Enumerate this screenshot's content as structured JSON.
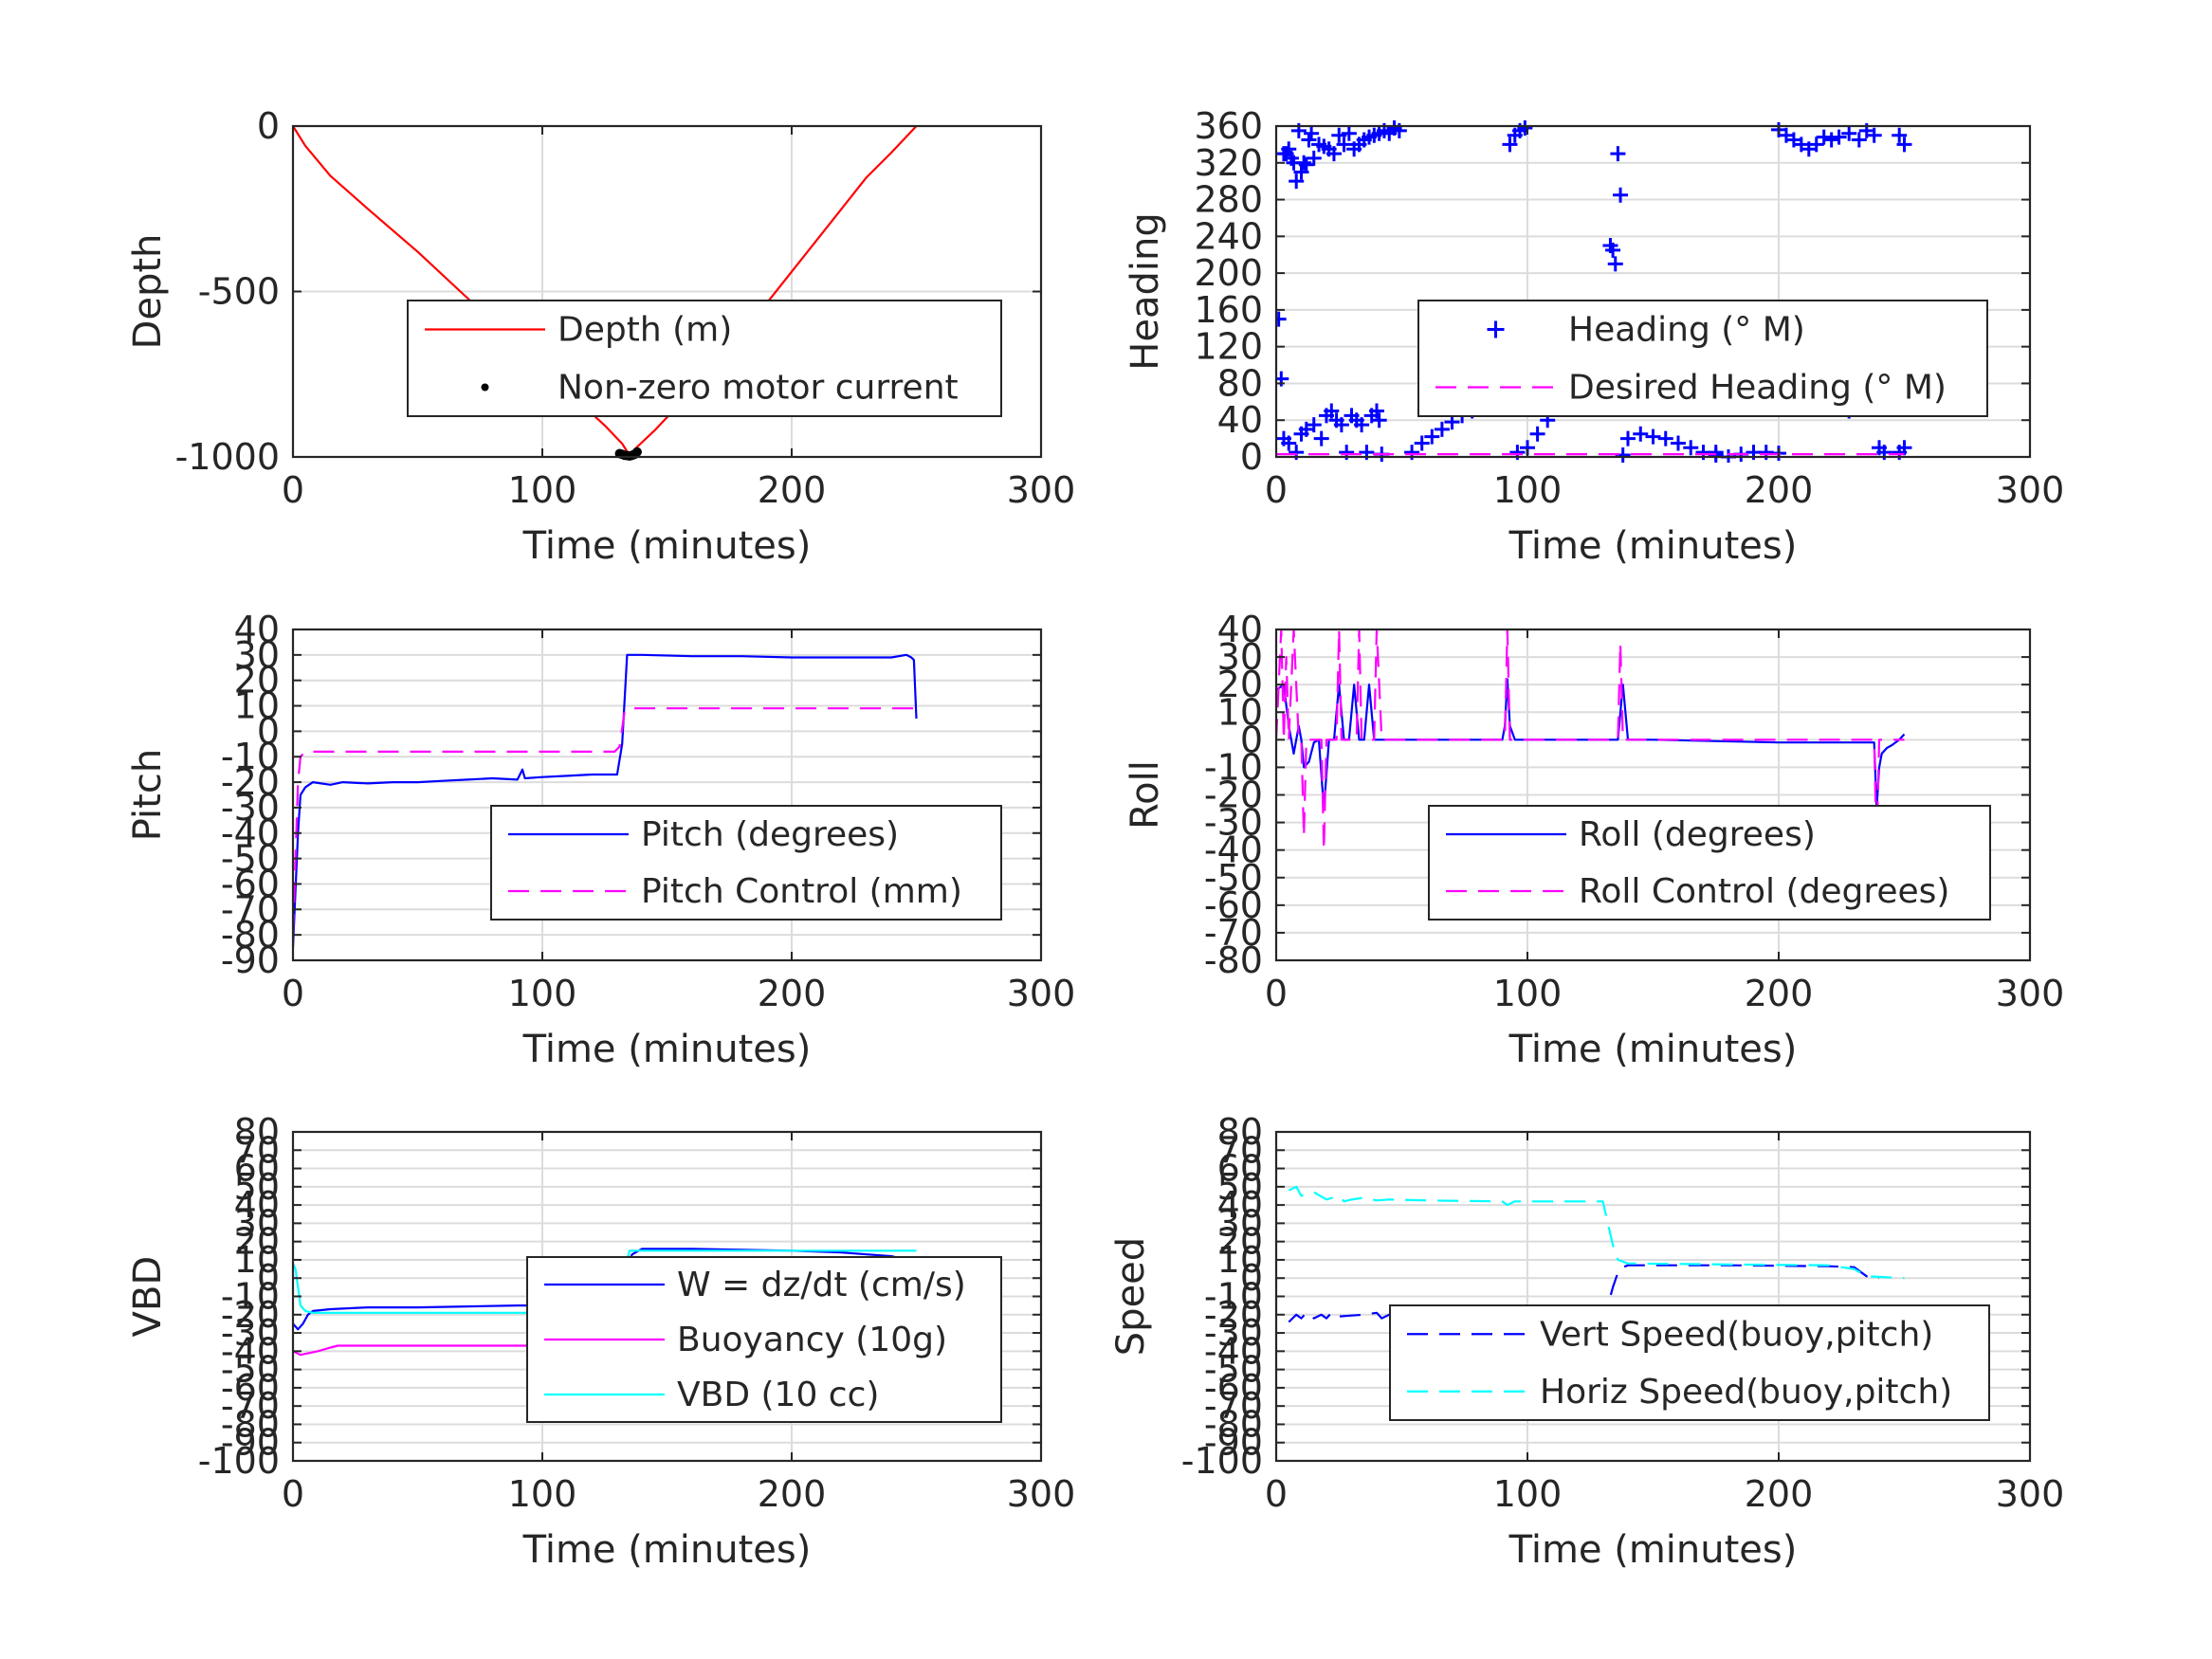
{
  "chart_data": [
    {
      "id": "depth",
      "type": "line",
      "xlabel": "Time (minutes)",
      "ylabel": "Depth",
      "xlim": [
        0,
        300
      ],
      "ylim": [
        -1000,
        0
      ],
      "xticks": [
        0,
        100,
        200,
        300
      ],
      "yticks": [
        -1000,
        -500,
        0
      ],
      "grid": true,
      "legend": "center-right",
      "series": [
        {
          "name": "Depth (m)",
          "color": "#ff0000",
          "style": "solid",
          "marker": "none",
          "x": [
            0,
            5,
            15,
            30,
            50,
            70,
            90,
            110,
            125,
            132,
            135,
            138,
            145,
            160,
            180,
            200,
            220,
            230,
            240,
            250
          ],
          "y": [
            0,
            -60,
            -150,
            -250,
            -380,
            -520,
            -660,
            -800,
            -905,
            -960,
            -995,
            -970,
            -920,
            -800,
            -630,
            -440,
            -250,
            -155,
            -80,
            0
          ]
        },
        {
          "name": "Non-zero motor current",
          "color": "#000000",
          "style": "none",
          "marker": "dot",
          "x": [
            131,
            132,
            133,
            134,
            135,
            136,
            137,
            138
          ],
          "y": [
            -990,
            -992,
            -995,
            -996,
            -997,
            -995,
            -992,
            -985
          ]
        }
      ]
    },
    {
      "id": "heading",
      "type": "scatter",
      "xlabel": "Time (minutes)",
      "ylabel": "Heading",
      "xlim": [
        0,
        300
      ],
      "ylim": [
        0,
        360
      ],
      "xticks": [
        0,
        100,
        200,
        300
      ],
      "yticks": [
        0,
        40,
        80,
        120,
        160,
        200,
        240,
        280,
        320,
        360
      ],
      "grid": true,
      "legend": "center-right",
      "series": [
        {
          "name": "Heading (° M)",
          "color": "#0000ff",
          "style": "none",
          "marker": "plus",
          "x": [
            1,
            2,
            3,
            4,
            5,
            6,
            7,
            8,
            9,
            10,
            11,
            12,
            13,
            14,
            15,
            17,
            19,
            21,
            23,
            25,
            27,
            29,
            31,
            33,
            35,
            37,
            39,
            41,
            43,
            45,
            47,
            49,
            3,
            5,
            8,
            10,
            12,
            15,
            18,
            20,
            22,
            24,
            26,
            28,
            30,
            32,
            34,
            36,
            38,
            40,
            41,
            42,
            54,
            58,
            62,
            66,
            70,
            74,
            78,
            82,
            86,
            90,
            93,
            95,
            97,
            99,
            92,
            96,
            100,
            104,
            108,
            112,
            116,
            120,
            124,
            128,
            131,
            133,
            134,
            135,
            136,
            137,
            138,
            140,
            145,
            150,
            155,
            160,
            165,
            170,
            175,
            180,
            185,
            190,
            195,
            200,
            203,
            206,
            209,
            212,
            215,
            218,
            221,
            224,
            228,
            232,
            235,
            238,
            240,
            242,
            240,
            244,
            248,
            250,
            228,
            232,
            238,
            244,
            248,
            250,
            200,
            175
          ],
          "y": [
            150,
            85,
            330,
            330,
            335,
            325,
            320,
            300,
            355,
            310,
            320,
            318,
            345,
            352,
            325,
            340,
            338,
            335,
            330,
            350,
            340,
            352,
            335,
            340,
            345,
            348,
            350,
            352,
            355,
            352,
            358,
            355,
            20,
            15,
            5,
            25,
            30,
            35,
            20,
            45,
            50,
            40,
            35,
            5,
            45,
            40,
            35,
            5,
            45,
            50,
            40,
            3,
            5,
            15,
            22,
            30,
            38,
            45,
            50,
            55,
            60,
            65,
            340,
            350,
            355,
            358,
            52,
            5,
            10,
            25,
            40,
            55,
            70,
            85,
            100,
            110,
            160,
            230,
            225,
            210,
            330,
            285,
            2,
            20,
            25,
            22,
            20,
            15,
            10,
            5,
            2,
            0,
            3,
            5,
            5,
            4,
            350,
            345,
            340,
            335,
            340,
            348,
            345,
            348,
            352,
            345,
            355,
            350,
            10,
            5,
            130,
            160,
            350,
            340,
            50,
            80,
            120,
            155,
            5,
            10,
            356,
            5
          ]
        },
        {
          "name": "Desired Heading (° M)",
          "color": "#ff00ff",
          "style": "dash",
          "marker": "none",
          "x": [
            0,
            250
          ],
          "y": [
            3,
            3
          ]
        }
      ]
    },
    {
      "id": "pitch",
      "type": "line",
      "xlabel": "Time (minutes)",
      "ylabel": "Pitch",
      "xlim": [
        0,
        300
      ],
      "ylim": [
        -90,
        40
      ],
      "xticks": [
        0,
        100,
        200,
        300
      ],
      "yticks": [
        -90,
        -80,
        -70,
        -60,
        -50,
        -40,
        -30,
        -20,
        -10,
        0,
        10,
        20,
        30,
        40
      ],
      "grid": true,
      "legend": "lower-right",
      "series": [
        {
          "name": "Pitch (degrees)",
          "color": "#0000ff",
          "style": "solid",
          "marker": "none",
          "x": [
            0,
            2,
            3,
            5,
            8,
            15,
            20,
            30,
            40,
            50,
            60,
            70,
            80,
            90,
            92,
            93,
            100,
            110,
            120,
            130,
            132,
            134,
            136,
            140,
            160,
            180,
            200,
            220,
            240,
            246,
            248,
            249,
            250
          ],
          "y": [
            -85,
            -40,
            -25,
            -22,
            -20,
            -21,
            -20,
            -20.5,
            -20,
            -20,
            -19.5,
            -19,
            -18.5,
            -19,
            -15,
            -18.5,
            -18,
            -17.5,
            -17,
            -17,
            -5,
            30,
            30,
            30,
            29.5,
            29.5,
            29,
            29,
            29,
            30,
            29,
            28,
            5
          ]
        },
        {
          "name": "Pitch Control (mm)",
          "color": "#ff00ff",
          "style": "dash",
          "marker": "none",
          "x": [
            0,
            2,
            3,
            5,
            15,
            50,
            100,
            129,
            131,
            133,
            136,
            140,
            200,
            250
          ],
          "y": [
            -80,
            -20,
            -10,
            -8,
            -8,
            -8,
            -8,
            -8,
            -6,
            8,
            9,
            9,
            9,
            9
          ]
        }
      ]
    },
    {
      "id": "roll",
      "type": "line",
      "xlabel": "Time (minutes)",
      "ylabel": "Roll",
      "xlim": [
        0,
        300
      ],
      "ylim": [
        -80,
        40
      ],
      "xticks": [
        0,
        100,
        200,
        300
      ],
      "yticks": [
        -80,
        -70,
        -60,
        -50,
        -40,
        -30,
        -20,
        -10,
        0,
        10,
        20,
        30,
        40
      ],
      "grid": true,
      "legend": "lower-right",
      "series": [
        {
          "name": "Roll (degrees)",
          "color": "#0000ff",
          "style": "solid",
          "marker": "none",
          "x": [
            0,
            3,
            5,
            7,
            9,
            10,
            11,
            13,
            15,
            17,
            19,
            21,
            23,
            25,
            27,
            29,
            31,
            33,
            35,
            37,
            39,
            41,
            43,
            60,
            90,
            91,
            92,
            93,
            95,
            130,
            136,
            138,
            140,
            142,
            150,
            200,
            238,
            239,
            240,
            241,
            243,
            245,
            248,
            250
          ],
          "y": [
            18,
            20,
            5,
            -5,
            5,
            0,
            -10,
            -8,
            -1,
            0,
            -25,
            0,
            0,
            20,
            0,
            0,
            20,
            0,
            0,
            20,
            0,
            0,
            0,
            0,
            0,
            5,
            22,
            5,
            0,
            0,
            0,
            20,
            0,
            0,
            0,
            -1,
            -1,
            -25,
            -10,
            -5,
            -3,
            -2,
            0,
            2
          ]
        },
        {
          "name": "Roll Control (degrees)",
          "color": "#ff00ff",
          "style": "dash",
          "marker": "none",
          "x": [
            0,
            2,
            3,
            4,
            5,
            7,
            9,
            10,
            11,
            12,
            14,
            16,
            18,
            19,
            20,
            22,
            24,
            25,
            26,
            28,
            30,
            32,
            33,
            34,
            36,
            38,
            39,
            40,
            42,
            44,
            90,
            91,
            92,
            93,
            94,
            135,
            136,
            137,
            138,
            139,
            140,
            141,
            238,
            239,
            240,
            241,
            242,
            250
          ],
          "y": [
            0,
            40,
            0,
            30,
            0,
            40,
            0,
            0,
            -35,
            0,
            0,
            0,
            0,
            -40,
            0,
            0,
            0,
            40,
            0,
            0,
            0,
            0,
            40,
            0,
            0,
            0,
            0,
            40,
            0,
            0,
            0,
            0,
            40,
            0,
            0,
            0,
            0,
            35,
            0,
            0,
            0,
            0,
            0,
            -40,
            0,
            0,
            0,
            0
          ]
        }
      ]
    },
    {
      "id": "vbd",
      "type": "line",
      "xlabel": "Time (minutes)",
      "ylabel": "VBD",
      "xlim": [
        0,
        300
      ],
      "ylim": [
        -100,
        80
      ],
      "xticks": [
        0,
        100,
        200,
        300
      ],
      "yticks": [
        -100,
        -90,
        -80,
        -70,
        -60,
        -50,
        -40,
        -30,
        -20,
        -10,
        0,
        10,
        20,
        30,
        40,
        50,
        60,
        70,
        80
      ],
      "grid": true,
      "legend": "lower-right",
      "series": [
        {
          "name": "W = dz/dt (cm/s)",
          "color": "#0000ff",
          "style": "solid",
          "marker": "none",
          "x": [
            0,
            2,
            4,
            6,
            8,
            15,
            30,
            50,
            70,
            90,
            110,
            125,
            130,
            132,
            136,
            140,
            160,
            180,
            200,
            220,
            240,
            246,
            250
          ],
          "y": [
            -25,
            -28,
            -25,
            -20,
            -18,
            -17,
            -16,
            -16,
            -15.5,
            -15,
            -15,
            -15.5,
            -14,
            0,
            13,
            16,
            16,
            15.5,
            15,
            14,
            12,
            10,
            0
          ]
        },
        {
          "name": "Buoyancy (10g)",
          "color": "#ff00ff",
          "style": "solid",
          "marker": "none",
          "x": [
            0,
            3,
            10,
            15,
            18,
            50,
            100,
            130,
            132,
            135,
            140,
            200,
            250
          ],
          "y": [
            -40,
            -42,
            -40,
            -38,
            -37,
            -37,
            -37,
            -37,
            -20,
            0,
            2,
            2,
            2
          ]
        },
        {
          "name": "VBD (10 cc)",
          "color": "#00ffff",
          "style": "solid",
          "marker": "none",
          "x": [
            0,
            1,
            2,
            3,
            5,
            8,
            15,
            50,
            100,
            130,
            132,
            135,
            140,
            200,
            250
          ],
          "y": [
            8,
            5,
            -5,
            -15,
            -18,
            -19,
            -19,
            -19,
            -19,
            -19,
            0,
            15,
            15,
            15,
            15
          ]
        }
      ]
    },
    {
      "id": "speed",
      "type": "line",
      "xlabel": "Time (minutes)",
      "ylabel": "Speed",
      "xlim": [
        0,
        300
      ],
      "ylim": [
        -100,
        80
      ],
      "xticks": [
        0,
        100,
        200,
        300
      ],
      "yticks": [
        -100,
        -90,
        -80,
        -70,
        -60,
        -50,
        -40,
        -30,
        -20,
        -10,
        0,
        10,
        20,
        30,
        40,
        50,
        60,
        70,
        80
      ],
      "grid": true,
      "legend": "lower-right",
      "series": [
        {
          "name": "Vert Speed(buoy,pitch)",
          "color": "#0000ff",
          "style": "dash",
          "marker": "none",
          "x": [
            5,
            8,
            10,
            12,
            15,
            18,
            20,
            22,
            25,
            30,
            35,
            40,
            42,
            45,
            60,
            90,
            92,
            95,
            130,
            132,
            134,
            136,
            138,
            140,
            180,
            220,
            230,
            235,
            240
          ],
          "y": [
            -24,
            -20,
            -22,
            -19,
            -22,
            -20,
            -22,
            -19,
            -21,
            -20.5,
            -20,
            -19,
            -22,
            -20,
            -20,
            -20,
            -18,
            -20,
            -20,
            -15,
            -5,
            3,
            6,
            7,
            7,
            6.5,
            6,
            1,
            0
          ]
        },
        {
          "name": "Horiz Speed(buoy,pitch)",
          "color": "#00ffff",
          "style": "dash",
          "marker": "none",
          "x": [
            5,
            8,
            10,
            15,
            20,
            25,
            27,
            30,
            35,
            40,
            45,
            60,
            90,
            92,
            95,
            130,
            132,
            134,
            136,
            140,
            180,
            220,
            230,
            235,
            250
          ],
          "y": [
            48,
            50,
            45,
            47,
            43,
            45,
            42,
            43,
            44,
            42.5,
            43,
            42.5,
            42,
            40,
            42,
            42,
            30,
            18,
            10,
            8,
            7.5,
            7,
            5,
            1,
            0
          ]
        }
      ]
    }
  ]
}
